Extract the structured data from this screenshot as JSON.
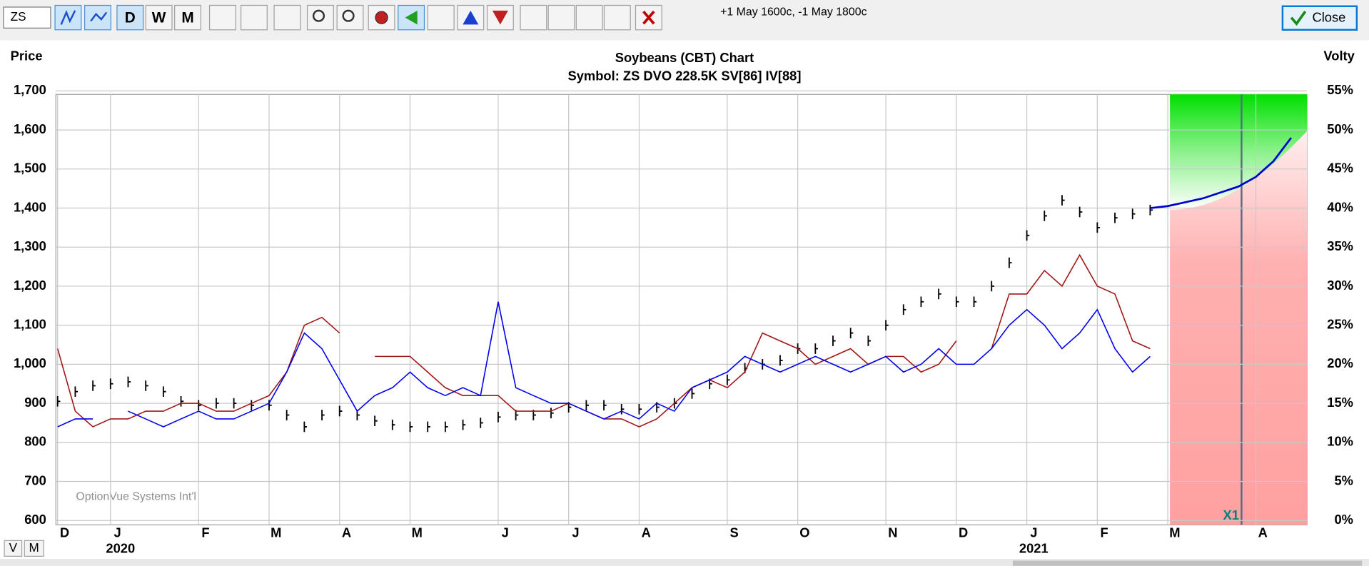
{
  "toolbar": {
    "symbol": "ZS",
    "periods": [
      "D",
      "W",
      "M"
    ],
    "status": "+1 May 1600c, -1 May 1800c",
    "close": "Close"
  },
  "chart_data": {
    "type": "line",
    "title": "Soybeans (CBT) Chart",
    "subtitle": "Symbol: ZS  DVO 228.5K  SV[86]  IV[88]",
    "ylabel": "Price",
    "y2label": "Volty",
    "watermark": "OptionVue Systems Int'l",
    "marker": "X1",
    "years": [
      "2020",
      "2021"
    ],
    "categories": [
      "D",
      null,
      null,
      "J",
      null,
      null,
      null,
      null,
      "F",
      null,
      null,
      null,
      "M",
      null,
      null,
      null,
      "A",
      null,
      null,
      null,
      "M",
      null,
      null,
      null,
      null,
      "J",
      null,
      null,
      null,
      "J",
      null,
      null,
      null,
      "A",
      null,
      null,
      null,
      null,
      "S",
      null,
      null,
      null,
      "O",
      null,
      null,
      null,
      null,
      "N",
      null,
      null,
      null,
      "D",
      null,
      null,
      null,
      "J",
      null,
      null,
      null,
      "F",
      null,
      null,
      null,
      "M",
      null,
      null,
      null,
      null,
      "A",
      null,
      null
    ],
    "ylim": [
      600,
      1700
    ],
    "yticks": [
      600,
      700,
      800,
      900,
      {
        "value": 1000,
        "label": "1,000"
      },
      {
        "value": 1100,
        "label": "1,100"
      },
      {
        "value": 1200,
        "label": "1,200"
      },
      {
        "value": 1300,
        "label": "1,300"
      },
      {
        "value": 1400,
        "label": "1,400"
      },
      {
        "value": 1500,
        "label": "1,500"
      },
      {
        "value": 1600,
        "label": "1,600"
      },
      {
        "value": 1700,
        "label": "1,700"
      }
    ],
    "y2lim": [
      0,
      55
    ],
    "y2ticks": [
      {
        "value": 0,
        "label": "0%"
      },
      {
        "value": 5,
        "label": "5%"
      },
      {
        "value": 10,
        "label": "10%"
      },
      {
        "value": 15,
        "label": "15%"
      },
      {
        "value": 20,
        "label": "20%"
      },
      {
        "value": 25,
        "label": "25%"
      },
      {
        "value": 30,
        "label": "30%"
      },
      {
        "value": 35,
        "label": "35%"
      },
      {
        "value": 40,
        "label": "40%"
      },
      {
        "value": 45,
        "label": "45%"
      },
      {
        "value": 50,
        "label": "50%"
      },
      {
        "value": 55,
        "label": "55%"
      }
    ],
    "grid": true,
    "series": [
      {
        "style": "bar",
        "color": "#000000",
        "values": [
          905,
          930,
          945,
          950,
          955,
          945,
          930,
          905,
          895,
          900,
          900,
          895,
          895,
          870,
          840,
          870,
          880,
          870,
          855,
          845,
          840,
          840,
          840,
          845,
          850,
          865,
          870,
          870,
          875,
          890,
          895,
          895,
          885,
          885,
          890,
          900,
          925,
          950,
          960,
          990,
          1000,
          1010,
          1040,
          1040,
          1060,
          1080,
          1060,
          1100,
          1140,
          1160,
          1180,
          1160,
          1160,
          1200,
          1260,
          1330,
          1380,
          1420,
          1390,
          1350,
          1375,
          1385,
          1395,
          null,
          null,
          null,
          null,
          null,
          null,
          null,
          null
        ]
      },
      {
        "style": "line",
        "axis": "y2",
        "color": "#a01818",
        "values": [
          22,
          14,
          12,
          13,
          13,
          14,
          14,
          15,
          15,
          14,
          14,
          15,
          16,
          19,
          25,
          26,
          24,
          null,
          21,
          21,
          21,
          19,
          17,
          16,
          16,
          16,
          14,
          14,
          14,
          15,
          14,
          13,
          13,
          12,
          13,
          15,
          17,
          18,
          17,
          19,
          24,
          23,
          22,
          20,
          21,
          22,
          20,
          21,
          21,
          19,
          20,
          23,
          null,
          22,
          29,
          29,
          32,
          30,
          34,
          30,
          29,
          23,
          22,
          null,
          null,
          null,
          null,
          null,
          null,
          null,
          null
        ]
      },
      {
        "style": "line",
        "axis": "y2",
        "color": "#0000ee",
        "values": [
          12,
          13,
          13,
          null,
          14,
          13,
          12,
          13,
          14,
          13,
          13,
          14,
          15,
          19,
          24,
          22,
          18,
          14,
          16,
          17,
          19,
          17,
          16,
          17,
          16,
          28,
          17,
          16,
          15,
          15,
          14,
          13,
          14,
          13,
          15,
          14,
          17,
          18,
          19,
          21,
          20,
          19,
          20,
          21,
          20,
          19,
          20,
          21,
          19,
          20,
          22,
          20,
          20,
          22,
          25,
          27,
          25,
          22,
          24,
          27,
          22,
          19,
          21,
          null,
          null,
          null,
          null,
          null,
          null,
          null,
          null
        ]
      },
      {
        "style": "projection",
        "color": "#0000cc",
        "values": [
          null,
          null,
          null,
          null,
          null,
          null,
          null,
          null,
          null,
          null,
          null,
          null,
          null,
          null,
          null,
          null,
          null,
          null,
          null,
          null,
          null,
          null,
          null,
          null,
          null,
          null,
          null,
          null,
          null,
          null,
          null,
          null,
          null,
          null,
          null,
          null,
          null,
          null,
          null,
          null,
          null,
          null,
          null,
          null,
          null,
          null,
          null,
          null,
          null,
          null,
          null,
          null,
          null,
          null,
          null,
          null,
          null,
          null,
          null,
          null,
          null,
          null,
          1400,
          1405,
          1415,
          1425,
          1440,
          1455,
          1480,
          1520,
          1580
        ]
      }
    ]
  },
  "footer": {
    "views": [
      "V",
      "M"
    ]
  }
}
